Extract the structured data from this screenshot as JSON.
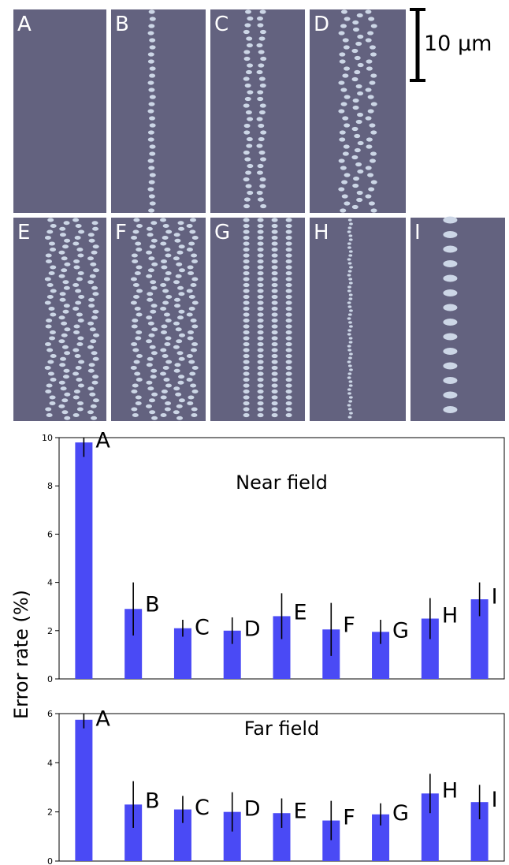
{
  "colors": {
    "panel_bg": "#63627f",
    "dot": "#ccd6e6",
    "bar": "#4a4af5",
    "error_bar": "#000000",
    "panel_label": "#ffffff"
  },
  "scale_bar": {
    "label": "10 μm"
  },
  "panels": [
    {
      "letter": "A",
      "pattern": "empty"
    },
    {
      "letter": "B",
      "pattern": "one-column"
    },
    {
      "letter": "C",
      "pattern": "two-column"
    },
    {
      "letter": "D",
      "pattern": "three-column-staggered"
    },
    {
      "letter": "E",
      "pattern": "four-column-staggered"
    },
    {
      "letter": "F",
      "pattern": "five-column-staggered"
    },
    {
      "letter": "G",
      "pattern": "four-column-aligned"
    },
    {
      "letter": "H",
      "pattern": "fine-single-column"
    },
    {
      "letter": "I",
      "pattern": "large-single-column"
    }
  ],
  "shared_ylabel": "Error rate (%)",
  "chart_data": [
    {
      "type": "bar",
      "annotation": "Near field",
      "categories": [
        "A",
        "B",
        "C",
        "D",
        "E",
        "F",
        "G",
        "H",
        "I"
      ],
      "values": [
        9.8,
        2.9,
        2.1,
        2.0,
        2.6,
        2.05,
        1.95,
        2.5,
        3.3
      ],
      "errors": [
        0.6,
        1.1,
        0.35,
        0.55,
        0.95,
        1.1,
        0.5,
        0.85,
        0.7
      ],
      "ylim": [
        0,
        10
      ],
      "yticks": [
        "0",
        "2",
        "4",
        "6",
        "8",
        "10"
      ],
      "ytick_values": [
        0,
        2,
        4,
        6,
        8,
        10
      ]
    },
    {
      "type": "bar",
      "annotation": "Far field",
      "categories": [
        "A",
        "B",
        "C",
        "D",
        "E",
        "F",
        "G",
        "H",
        "I"
      ],
      "values": [
        5.75,
        2.3,
        2.1,
        2.0,
        1.95,
        1.65,
        1.9,
        2.75,
        2.4
      ],
      "errors": [
        0.35,
        0.95,
        0.55,
        0.8,
        0.6,
        0.8,
        0.45,
        0.8,
        0.7
      ],
      "ylim": [
        0,
        6
      ],
      "yticks": [
        "0",
        "2",
        "4",
        "6"
      ],
      "ytick_values": [
        0,
        2,
        4,
        6
      ]
    }
  ]
}
